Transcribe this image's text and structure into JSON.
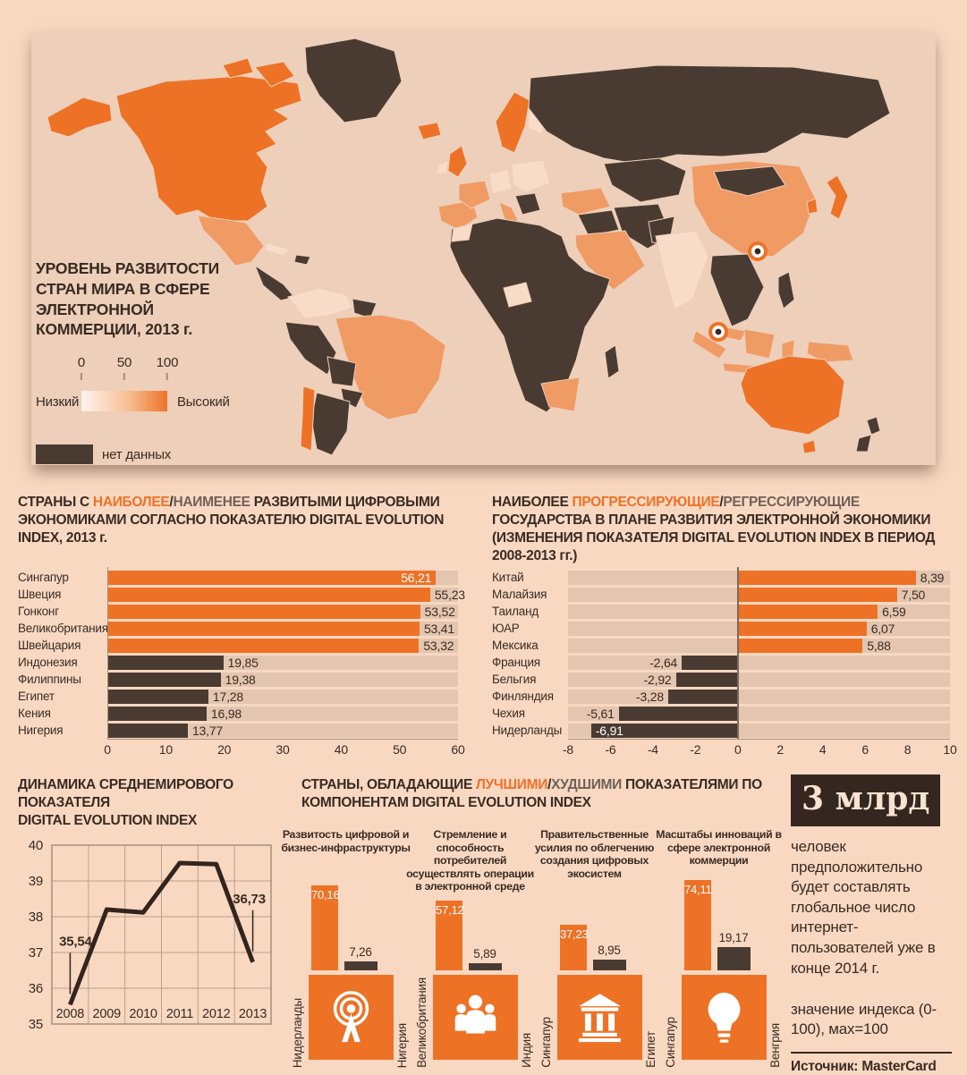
{
  "palette": {
    "page_bg": "#f9d8c2",
    "panel_bg": "#edcfba",
    "bright_orange": "#ed7226",
    "medium_orange": "#f09a64",
    "pale": "#f8dcc8",
    "dark_brown": "#4a3b32",
    "text": "#392b22",
    "muted": "#6f6157",
    "track": "#e4c6b0",
    "grid": "#bb9f8b"
  },
  "map_section": {
    "title_lines": [
      "УРОВЕНЬ РАЗВИТОСТИ",
      "СТРАН МИРА В СФЕРЕ",
      "ЭЛЕКТРОННОЙ",
      "КОММЕРЦИИ, 2013 г."
    ],
    "legend": {
      "ticks": [
        "0",
        "50",
        "100"
      ],
      "low_label": "Низкий",
      "high_label": "Высокий",
      "no_data_label": "нет данных"
    }
  },
  "chart_data": [
    {
      "id": "dei_top_bottom_2013",
      "type": "bar",
      "orientation": "horizontal",
      "title_parts": [
        {
          "text": "СТРАНЫ С ",
          "color": "dark"
        },
        {
          "text": "НАИБОЛЕЕ",
          "color": "orange"
        },
        {
          "text": "/",
          "color": "dark"
        },
        {
          "text": "НАИМЕНЕЕ",
          "color": "muted"
        },
        {
          "text": " РАЗВИТЫМИ ЦИФРОВЫМИ ЭКОНОМИКАМИ СОГЛАСНО ПОКАЗАТЕЛЮ DIGITAL EVOLUTION INDEX, 2013 г.",
          "color": "dark"
        }
      ],
      "categories": [
        "Сингапур",
        "Швеция",
        "Гонконг",
        "Великобритания",
        "Швейцария",
        "Индонезия",
        "Филиппины",
        "Египет",
        "Кения",
        "Нигерия"
      ],
      "values": [
        56.21,
        55.23,
        53.52,
        53.41,
        53.32,
        19.85,
        19.38,
        17.28,
        16.98,
        13.77
      ],
      "value_labels": [
        "56,21",
        "55,23",
        "53,52",
        "53,41",
        "53,32",
        "19,85",
        "19,38",
        "17,28",
        "16,98",
        "13,77"
      ],
      "bar_colors": [
        "orange",
        "orange",
        "orange",
        "orange",
        "orange",
        "dark",
        "dark",
        "dark",
        "dark",
        "dark"
      ],
      "label_inside": [
        true,
        false,
        false,
        false,
        false,
        false,
        false,
        false,
        false,
        false
      ],
      "xlim": [
        0,
        60
      ],
      "x_ticks": [
        0,
        10,
        20,
        30,
        40,
        50,
        60
      ],
      "grid": false,
      "legend_position": "none"
    },
    {
      "id": "dei_change_2008_2013",
      "type": "bar",
      "orientation": "horizontal",
      "title_parts": [
        {
          "text": "НАИБОЛЕЕ ",
          "color": "dark"
        },
        {
          "text": "ПРОГРЕССИРУЮЩИЕ",
          "color": "orange"
        },
        {
          "text": "/",
          "color": "dark"
        },
        {
          "text": "РЕГРЕССИРУЮЩИЕ",
          "color": "muted"
        },
        {
          "text": " ГОСУДАРСТВА В ПЛАНЕ РАЗВИТИЯ ЭЛЕКТРОННОЙ ЭКОНОМИКИ (ИЗМЕНЕНИЯ ПОКАЗАТЕЛЯ DIGITAL EVOLUTION INDEX В ПЕРИОД 2008-2013 гг.)",
          "color": "dark"
        }
      ],
      "categories": [
        "Китай",
        "Малайзия",
        "Таиланд",
        "ЮАР",
        "Мексика",
        "Франция",
        "Бельгия",
        "Финляндия",
        "Чехия",
        "Нидерланды"
      ],
      "values": [
        8.39,
        7.5,
        6.59,
        6.07,
        5.88,
        -2.64,
        -2.92,
        -3.28,
        -5.61,
        -6.91
      ],
      "value_labels": [
        "8,39",
        "7,50",
        "6,59",
        "6,07",
        "5,88",
        "-2,64",
        "-2,92",
        "-3,28",
        "-5,61",
        "-6,91"
      ],
      "bar_colors": [
        "orange",
        "orange",
        "orange",
        "orange",
        "orange",
        "dark",
        "dark",
        "dark",
        "dark",
        "dark"
      ],
      "label_inside": [
        false,
        false,
        false,
        false,
        false,
        false,
        false,
        false,
        false,
        true
      ],
      "xlim": [
        -8,
        10
      ],
      "x_ticks": [
        -8,
        -6,
        -4,
        -2,
        0,
        2,
        4,
        6,
        8,
        10
      ],
      "grid": false,
      "legend_position": "none"
    },
    {
      "id": "dei_world_average",
      "type": "line",
      "title_lines": [
        "ДИНАМИКА СРЕДНЕМИРОВОГО",
        "ПОКАЗАТЕЛЯ",
        "DIGITAL EVOLUTION INDEX"
      ],
      "x": [
        "2008",
        "2009",
        "2010",
        "2011",
        "2012",
        "2013"
      ],
      "y": [
        35.54,
        38.2,
        38.12,
        39.5,
        39.47,
        36.73
      ],
      "ylim": [
        35,
        40
      ],
      "y_ticks": [
        "40",
        "39",
        "38",
        "37",
        "36",
        "35"
      ],
      "annotations": [
        {
          "x": "2008",
          "label": "35,54"
        },
        {
          "x": "2013",
          "label": "36,73"
        }
      ],
      "grid": true,
      "legend_position": "none"
    },
    {
      "id": "dei_components_best_worst",
      "type": "bar",
      "title_parts": [
        {
          "text": "СТРАНЫ, ОБЛАДАЮЩИЕ ",
          "color": "dark"
        },
        {
          "text": "ЛУЧШИМИ",
          "color": "orange"
        },
        {
          "text": "/",
          "color": "dark"
        },
        {
          "text": "ХУДШИМИ",
          "color": "muted"
        },
        {
          "text": " ПОКАЗАТЕЛЯМИ ПО КОМПОНЕНТАМ DIGITAL EVOLUTION INDEX",
          "color": "dark"
        }
      ],
      "groups": [
        {
          "component": "Развитость цифровой и бизнес-инфраструктуры",
          "icon": "broadcast-tower-icon",
          "best": {
            "country": "Нидерланды",
            "value": 70.16,
            "label": "70,16"
          },
          "worst": {
            "country": "Нигерия",
            "value": 7.26,
            "label": "7,26"
          }
        },
        {
          "component": "Стремление и способность потребителей осуществлять операции в электронной среде",
          "icon": "people-group-icon",
          "best": {
            "country": "Великобритания",
            "value": 57.12,
            "label": "57,12"
          },
          "worst": {
            "country": "Индия",
            "value": 5.89,
            "label": "5,89"
          }
        },
        {
          "component": "Правительственные усилия по облегчению создания цифровых экосистем",
          "icon": "bank-building-icon",
          "best": {
            "country": "Сингапур",
            "value": 37.23,
            "label": "37,23"
          },
          "worst": {
            "country": "Египет",
            "value": 8.95,
            "label": "8,95"
          }
        },
        {
          "component": "Масштабы инноваций в сфере электронной коммерции",
          "icon": "light-bulb-icon",
          "best": {
            "country": "Сингапур",
            "value": 74.11,
            "label": "74,11"
          },
          "worst": {
            "country": "Венгрия",
            "value": 19.17,
            "label": "19,17"
          }
        }
      ],
      "value_range": [
        0,
        100
      ],
      "legend_position": "none"
    }
  ],
  "fact_box": {
    "number": "3 млрд",
    "text": "человек предположительно будет составлять глобальное число интернет-пользователей уже в конце 2014 г.",
    "index_note": "значение индекса (0-100), мах=100",
    "source": "Источник: MasterCard"
  }
}
